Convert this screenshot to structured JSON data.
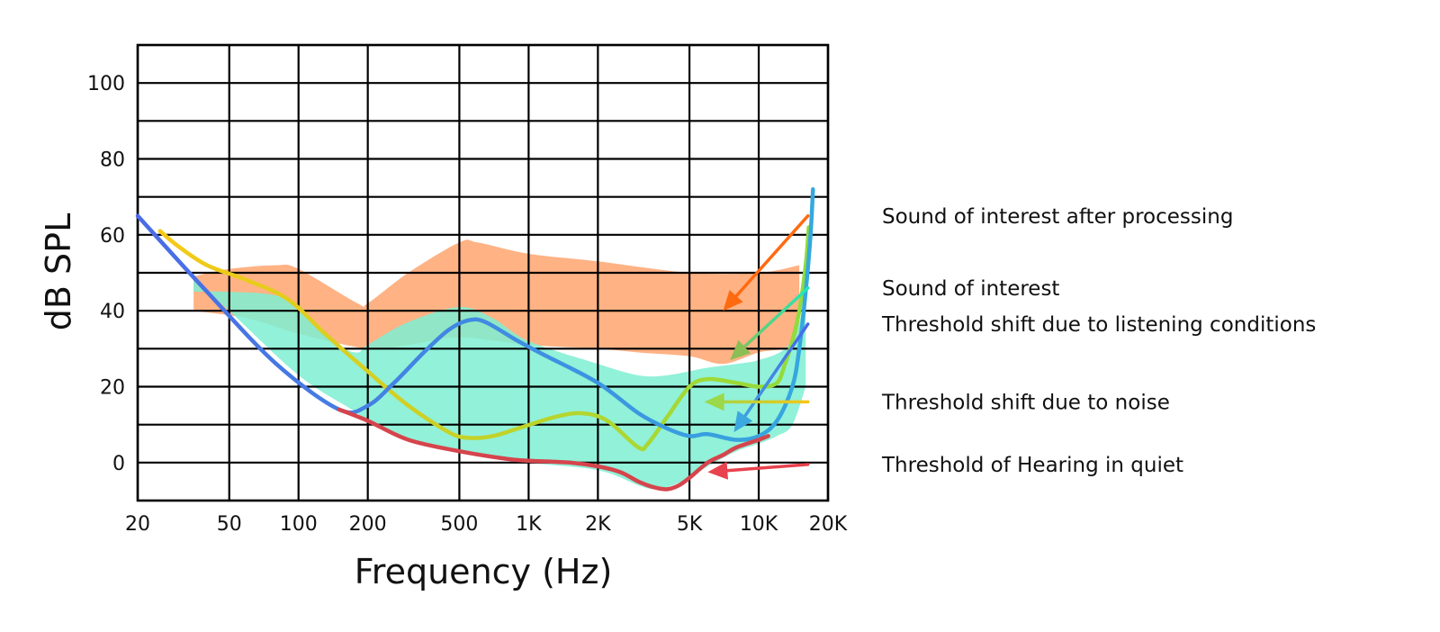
{
  "chart_data": {
    "type": "area",
    "xscale": "log",
    "xlabel": "Frequency (Hz)",
    "ylabel": "dB SPL",
    "xlim": [
      20,
      20000
    ],
    "ylim": [
      -10,
      110
    ],
    "grid": true,
    "xticks": [
      {
        "value": 20,
        "label": "20"
      },
      {
        "value": 50,
        "label": "50"
      },
      {
        "value": 100,
        "label": "100"
      },
      {
        "value": 200,
        "label": "200"
      },
      {
        "value": 500,
        "label": "500"
      },
      {
        "value": 1000,
        "label": "1K"
      },
      {
        "value": 2000,
        "label": "2K"
      },
      {
        "value": 5000,
        "label": "5K"
      },
      {
        "value": 10000,
        "label": "10K"
      },
      {
        "value": 20000,
        "label": "20K"
      }
    ],
    "yticks": [
      {
        "value": 0,
        "label": "0"
      },
      {
        "value": 20,
        "label": "20"
      },
      {
        "value": 40,
        "label": "40"
      },
      {
        "value": 60,
        "label": "60"
      },
      {
        "value": 80,
        "label": "80"
      },
      {
        "value": 100,
        "label": "100"
      }
    ],
    "ygrid": [
      0,
      10,
      20,
      30,
      40,
      50,
      60,
      70,
      80,
      90,
      100
    ],
    "series": [
      {
        "name": "Sound of interest after processing",
        "kind": "band",
        "color": "#FFAA77",
        "opacity": 0.9,
        "upper": [
          [
            35,
            49
          ],
          [
            50,
            51
          ],
          [
            80,
            52
          ],
          [
            100,
            51
          ],
          [
            180,
            42
          ],
          [
            200,
            42
          ],
          [
            300,
            50
          ],
          [
            500,
            58
          ],
          [
            600,
            58
          ],
          [
            1000,
            55
          ],
          [
            2000,
            53
          ],
          [
            5000,
            50
          ],
          [
            10000,
            50
          ],
          [
            15000,
            52
          ]
        ],
        "lower": [
          [
            15000,
            32
          ],
          [
            13000,
            30
          ],
          [
            10000,
            29
          ],
          [
            7000,
            26
          ],
          [
            5000,
            28
          ],
          [
            3000,
            29
          ],
          [
            2000,
            30
          ],
          [
            1000,
            31
          ],
          [
            500,
            33
          ],
          [
            300,
            31
          ],
          [
            200,
            30
          ],
          [
            100,
            34
          ],
          [
            60,
            38
          ],
          [
            35,
            40
          ]
        ]
      },
      {
        "name": "Sound of interest",
        "kind": "band",
        "color": "#7EEED2",
        "opacity": 0.85,
        "upper": [
          [
            35,
            45
          ],
          [
            50,
            45
          ],
          [
            80,
            44
          ],
          [
            100,
            40
          ],
          [
            150,
            31
          ],
          [
            180,
            29
          ],
          [
            200,
            31
          ],
          [
            300,
            37
          ],
          [
            500,
            41
          ],
          [
            700,
            38
          ],
          [
            1000,
            32
          ],
          [
            2000,
            26
          ],
          [
            3000,
            23
          ],
          [
            4000,
            23
          ],
          [
            6000,
            25
          ],
          [
            8000,
            26
          ],
          [
            10000,
            27
          ],
          [
            13000,
            30
          ],
          [
            15000,
            37
          ],
          [
            16000,
            48
          ]
        ],
        "lower": [
          [
            16000,
            20
          ],
          [
            14000,
            10
          ],
          [
            12000,
            7
          ],
          [
            10000,
            5
          ],
          [
            8000,
            3
          ],
          [
            6000,
            -1
          ],
          [
            5000,
            -4
          ],
          [
            4000,
            -6.5
          ],
          [
            3500,
            -7
          ],
          [
            3000,
            -6
          ],
          [
            2000,
            -2
          ],
          [
            1000,
            0
          ],
          [
            500,
            3
          ],
          [
            300,
            6
          ],
          [
            200,
            11
          ],
          [
            170,
            14
          ],
          [
            100,
            23
          ],
          [
            50,
            40
          ],
          [
            35,
            48
          ]
        ]
      }
    ],
    "curves": [
      {
        "name": "Threshold shift due to noise",
        "gradient": [
          "#F7C915",
          "#8FDC3C"
        ],
        "points": [
          [
            25,
            61
          ],
          [
            30,
            57
          ],
          [
            40,
            52
          ],
          [
            60,
            48
          ],
          [
            90,
            43
          ],
          [
            130,
            34
          ],
          [
            200,
            24
          ],
          [
            300,
            15
          ],
          [
            450,
            8
          ],
          [
            550,
            6.5
          ],
          [
            700,
            7
          ],
          [
            900,
            9
          ],
          [
            1300,
            12
          ],
          [
            1700,
            13
          ],
          [
            2200,
            11
          ],
          [
            3000,
            4
          ],
          [
            3300,
            5
          ],
          [
            4000,
            12
          ],
          [
            5000,
            20
          ],
          [
            6000,
            22
          ],
          [
            8000,
            21
          ],
          [
            10000,
            20
          ],
          [
            12000,
            21
          ],
          [
            13000,
            26
          ],
          [
            14000,
            32
          ],
          [
            15000,
            40
          ],
          [
            16000,
            52
          ],
          [
            16500,
            62
          ]
        ]
      },
      {
        "name": "Threshold shift due to listening conditions",
        "gradient": [
          "#4B6BE6",
          "#35A8DE"
        ],
        "points": [
          [
            20,
            65
          ],
          [
            40,
            45
          ],
          [
            80,
            26
          ],
          [
            150,
            14
          ],
          [
            200,
            15
          ],
          [
            260,
            21
          ],
          [
            350,
            29
          ],
          [
            450,
            35
          ],
          [
            550,
            37.5
          ],
          [
            650,
            37
          ],
          [
            900,
            32
          ],
          [
            1200,
            28
          ],
          [
            2000,
            21
          ],
          [
            3000,
            13
          ],
          [
            4000,
            9
          ],
          [
            5000,
            7
          ],
          [
            6000,
            7.5
          ],
          [
            8000,
            6
          ],
          [
            10000,
            7
          ],
          [
            12000,
            11
          ],
          [
            14000,
            20
          ],
          [
            15000,
            30
          ],
          [
            16000,
            45
          ],
          [
            16800,
            60
          ],
          [
            17200,
            72
          ]
        ]
      },
      {
        "name": "Threshold of Hearing in quiet",
        "color": "#D6444C",
        "points": [
          [
            150,
            14
          ],
          [
            200,
            11
          ],
          [
            300,
            6
          ],
          [
            500,
            3
          ],
          [
            800,
            1
          ],
          [
            1000,
            0.5
          ],
          [
            1500,
            0
          ],
          [
            2000,
            -1
          ],
          [
            2500,
            -2.5
          ],
          [
            3000,
            -5
          ],
          [
            3500,
            -6.5
          ],
          [
            4000,
            -7
          ],
          [
            4500,
            -6
          ],
          [
            5000,
            -4
          ],
          [
            6000,
            0
          ],
          [
            7000,
            2
          ],
          [
            8000,
            4
          ],
          [
            10000,
            6
          ],
          [
            11000,
            7
          ]
        ]
      }
    ],
    "annotations": [
      {
        "id": "after-processing",
        "text": "Sound of interest after processing",
        "color": "#FF6A10",
        "from": [
          15500,
          65
        ],
        "to": [
          7000,
          40
        ]
      },
      {
        "id": "sound-of-interest",
        "text": "Sound of interest",
        "color": "#20E8B8",
        "fromColor": "#20E8B8",
        "toColor": "#8BBE55",
        "from": [
          15500,
          46
        ],
        "to": [
          7500,
          27
        ]
      },
      {
        "id": "listening-conditions",
        "text": "Threshold shift due to listening conditions",
        "color": "#3A7CE8",
        "fromColor": "#4A66E8",
        "toColor": "#3BA8DF",
        "from": [
          15500,
          36.5
        ],
        "to": [
          7800,
          8
        ]
      },
      {
        "id": "noise",
        "text": "Threshold shift due to noise",
        "color": "#F5C518",
        "fromColor": "#F5C518",
        "toColor": "#9BD84A",
        "from": [
          15500,
          16
        ],
        "to": [
          5800,
          16
        ]
      },
      {
        "id": "quiet",
        "text": "Threshold of Hearing in quiet",
        "color": "#E8424E",
        "from": [
          15500,
          -0.5
        ],
        "to": [
          6000,
          -2.5
        ]
      }
    ]
  }
}
